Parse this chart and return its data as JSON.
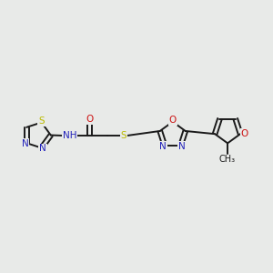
{
  "background_color": "#e8eae8",
  "bond_color": "#1a1a1a",
  "N_color": "#2222bb",
  "S_color": "#bbbb00",
  "O_color": "#cc1111",
  "H_color": "#4a7a6a",
  "C_color": "#1a1a1a",
  "figsize": [
    3.0,
    3.0
  ],
  "dpi": 100,
  "xlim": [
    0,
    10
  ],
  "ylim": [
    3,
    7
  ]
}
